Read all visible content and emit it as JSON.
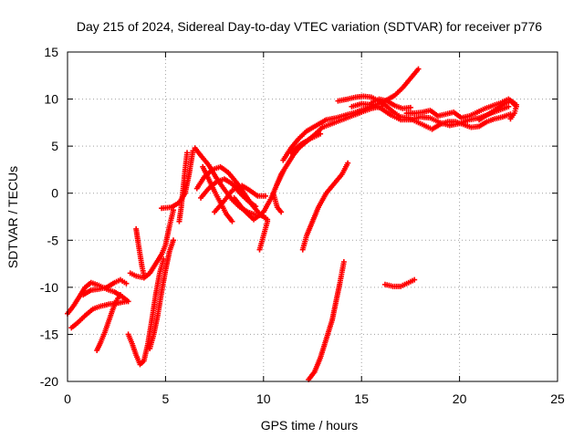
{
  "chart_data": {
    "type": "scatter",
    "title": "Day 215 of 2024, Sidereal Day-to-day VTEC variation (SDTVAR) for receiver p776",
    "xlabel": "GPS time / hours",
    "ylabel": "SDTVAR / TECUs",
    "xlim": [
      0,
      25
    ],
    "ylim": [
      -20,
      15
    ],
    "xticks": [
      0,
      5,
      10,
      15,
      20,
      25
    ],
    "yticks": [
      -20,
      -15,
      -10,
      -5,
      0,
      5,
      10,
      15
    ],
    "grid": true,
    "marker": "plus",
    "color": "#ff0000",
    "series": [
      {
        "points": [
          [
            0.0,
            -12.8
          ],
          [
            0.3,
            -12.0
          ],
          [
            0.6,
            -11.0
          ],
          [
            0.9,
            -10.0
          ],
          [
            1.2,
            -9.5
          ],
          [
            1.6,
            -9.8
          ],
          [
            2.0,
            -10.2
          ],
          [
            2.4,
            -10.5
          ],
          [
            2.8,
            -11.0
          ],
          [
            3.1,
            -11.5
          ]
        ]
      },
      {
        "points": [
          [
            0.2,
            -14.3
          ],
          [
            0.5,
            -13.8
          ],
          [
            0.9,
            -13.0
          ],
          [
            1.3,
            -12.3
          ],
          [
            1.7,
            -12.0
          ],
          [
            2.1,
            -11.8
          ],
          [
            2.5,
            -11.7
          ],
          [
            3.0,
            -11.5
          ]
        ]
      },
      {
        "points": [
          [
            0.8,
            -10.8
          ],
          [
            1.2,
            -10.3
          ],
          [
            1.6,
            -10.2
          ],
          [
            2.0,
            -10.0
          ],
          [
            2.4,
            -9.5
          ],
          [
            2.7,
            -9.2
          ],
          [
            3.0,
            -9.6
          ]
        ]
      },
      {
        "points": [
          [
            1.5,
            -16.7
          ],
          [
            1.7,
            -15.8
          ],
          [
            1.9,
            -14.8
          ],
          [
            2.1,
            -13.6
          ],
          [
            2.3,
            -12.4
          ],
          [
            2.5,
            -11.4
          ],
          [
            2.7,
            -10.8
          ]
        ]
      },
      {
        "points": [
          [
            3.5,
            -3.8
          ],
          [
            3.6,
            -5.2
          ],
          [
            3.7,
            -6.5
          ],
          [
            3.8,
            -7.8
          ],
          [
            3.9,
            -8.7
          ]
        ]
      },
      {
        "points": [
          [
            3.2,
            -8.5
          ],
          [
            3.5,
            -8.8
          ],
          [
            3.9,
            -9.0
          ],
          [
            4.2,
            -8.5
          ],
          [
            4.5,
            -7.5
          ],
          [
            4.8,
            -6.5
          ],
          [
            5.0,
            -5.5
          ],
          [
            5.2,
            -3.5
          ],
          [
            5.4,
            -1.8
          ]
        ]
      },
      {
        "points": [
          [
            3.1,
            -15.0
          ],
          [
            3.3,
            -16.0
          ],
          [
            3.5,
            -17.2
          ],
          [
            3.7,
            -18.2
          ],
          [
            3.9,
            -17.8
          ],
          [
            4.1,
            -16.0
          ],
          [
            4.3,
            -13.5
          ],
          [
            4.5,
            -10.8
          ],
          [
            4.7,
            -8.5
          ],
          [
            4.9,
            -7.0
          ]
        ]
      },
      {
        "points": [
          [
            4.2,
            -16.5
          ],
          [
            4.4,
            -15.0
          ],
          [
            4.6,
            -13.0
          ],
          [
            4.8,
            -10.5
          ],
          [
            5.0,
            -8.2
          ],
          [
            5.2,
            -6.2
          ],
          [
            5.4,
            -5.0
          ]
        ]
      },
      {
        "points": [
          [
            4.8,
            -1.6
          ],
          [
            5.3,
            -1.5
          ],
          [
            5.7,
            -1.0
          ],
          [
            6.0,
            0.0
          ],
          [
            6.2,
            2.0
          ],
          [
            6.4,
            4.5
          ]
        ]
      },
      {
        "points": [
          [
            5.7,
            -3.0
          ],
          [
            5.8,
            -1.5
          ],
          [
            5.9,
            0.5
          ],
          [
            6.0,
            2.5
          ],
          [
            6.1,
            4.3
          ]
        ]
      },
      {
        "points": [
          [
            6.5,
            4.8
          ],
          [
            6.8,
            4.0
          ],
          [
            7.2,
            3.0
          ],
          [
            7.6,
            1.6
          ],
          [
            8.0,
            0.4
          ],
          [
            8.4,
            -0.7
          ],
          [
            8.8,
            -1.5
          ],
          [
            9.2,
            -2.0
          ],
          [
            9.6,
            -2.3
          ],
          [
            10.0,
            -2.4
          ]
        ]
      },
      {
        "points": [
          [
            6.9,
            2.8
          ],
          [
            7.2,
            1.5
          ],
          [
            7.5,
            0.2
          ],
          [
            7.8,
            -1.0
          ],
          [
            8.1,
            -2.2
          ],
          [
            8.4,
            -3.0
          ]
        ]
      },
      {
        "points": [
          [
            6.6,
            0.5
          ],
          [
            7.0,
            1.8
          ],
          [
            7.4,
            2.5
          ],
          [
            7.8,
            2.8
          ],
          [
            8.2,
            2.2
          ],
          [
            8.6,
            1.2
          ],
          [
            9.0,
            0.0
          ],
          [
            9.4,
            -1.2
          ],
          [
            9.8,
            -2.2
          ],
          [
            10.2,
            -2.8
          ]
        ]
      },
      {
        "points": [
          [
            6.8,
            -0.5
          ],
          [
            7.2,
            0.5
          ],
          [
            7.6,
            1.2
          ],
          [
            8.0,
            1.5
          ],
          [
            8.4,
            1.0
          ],
          [
            8.8,
            0.0
          ],
          [
            9.2,
            -0.8
          ],
          [
            9.6,
            -1.4
          ]
        ]
      },
      {
        "points": [
          [
            7.5,
            -2.0
          ],
          [
            8.0,
            -0.8
          ],
          [
            8.4,
            0.3
          ],
          [
            8.9,
            0.8
          ],
          [
            9.3,
            0.3
          ],
          [
            9.7,
            -0.3
          ],
          [
            10.1,
            -0.3
          ]
        ]
      },
      {
        "points": [
          [
            8.5,
            -0.5
          ],
          [
            9.0,
            -1.8
          ],
          [
            9.5,
            -2.8
          ],
          [
            10.0,
            -2.0
          ],
          [
            10.4,
            -0.5
          ],
          [
            10.7,
            1.0
          ],
          [
            11.0,
            2.3
          ]
        ]
      },
      {
        "points": [
          [
            10.5,
            0.0
          ],
          [
            10.7,
            -1.5
          ],
          [
            10.9,
            -2.0
          ]
        ]
      },
      {
        "points": [
          [
            9.8,
            -6.0
          ],
          [
            10.0,
            -4.5
          ],
          [
            10.2,
            -3.0
          ]
        ]
      },
      {
        "points": [
          [
            10.7,
            1.0
          ],
          [
            10.9,
            2.0
          ],
          [
            11.2,
            3.0
          ],
          [
            11.5,
            4.0
          ],
          [
            11.8,
            4.8
          ],
          [
            12.2,
            5.5
          ],
          [
            12.6,
            6.2
          ],
          [
            13.0,
            7.0
          ],
          [
            13.5,
            7.4
          ],
          [
            14.0,
            7.8
          ],
          [
            14.5,
            8.2
          ],
          [
            15.0,
            8.6
          ],
          [
            15.5,
            9.0
          ],
          [
            16.0,
            9.2
          ]
        ]
      },
      {
        "points": [
          [
            11.0,
            3.5
          ],
          [
            11.4,
            4.8
          ],
          [
            11.8,
            5.8
          ],
          [
            12.2,
            6.6
          ],
          [
            12.7,
            7.2
          ],
          [
            13.2,
            7.8
          ],
          [
            13.7,
            8.0
          ],
          [
            14.2,
            8.3
          ],
          [
            14.7,
            8.6
          ],
          [
            15.2,
            9.0
          ],
          [
            15.7,
            9.4
          ],
          [
            16.2,
            9.8
          ],
          [
            16.7,
            10.4
          ],
          [
            17.1,
            11.2
          ],
          [
            17.5,
            12.2
          ],
          [
            17.9,
            13.2
          ]
        ]
      },
      {
        "points": [
          [
            11.4,
            4.3
          ],
          [
            11.9,
            5.2
          ],
          [
            12.4,
            5.8
          ],
          [
            12.9,
            6.3
          ]
        ]
      },
      {
        "points": [
          [
            12.0,
            -6.0
          ],
          [
            12.2,
            -4.5
          ],
          [
            12.5,
            -3.0
          ],
          [
            12.8,
            -1.5
          ],
          [
            13.2,
            0.0
          ],
          [
            13.6,
            1.0
          ],
          [
            14.0,
            2.0
          ],
          [
            14.3,
            3.2
          ]
        ]
      },
      {
        "points": [
          [
            12.3,
            -19.8
          ],
          [
            12.6,
            -19.0
          ],
          [
            12.9,
            -17.5
          ],
          [
            13.2,
            -15.5
          ],
          [
            13.5,
            -13.5
          ],
          [
            13.7,
            -11.5
          ],
          [
            13.9,
            -9.5
          ],
          [
            14.1,
            -7.3
          ]
        ]
      },
      {
        "points": [
          [
            13.8,
            9.8
          ],
          [
            14.3,
            10.0
          ],
          [
            14.7,
            10.2
          ],
          [
            15.1,
            10.3
          ],
          [
            15.5,
            10.2
          ],
          [
            15.9,
            9.8
          ],
          [
            16.3,
            9.2
          ],
          [
            16.7,
            8.5
          ],
          [
            17.0,
            8.1
          ],
          [
            17.4,
            8.0
          ],
          [
            17.8,
            7.6
          ],
          [
            18.2,
            7.2
          ],
          [
            18.6,
            6.8
          ],
          [
            19.0,
            7.3
          ],
          [
            19.4,
            7.6
          ],
          [
            19.8,
            7.6
          ],
          [
            20.2,
            7.3
          ],
          [
            20.6,
            7.0
          ],
          [
            21.0,
            7.1
          ],
          [
            21.4,
            7.6
          ],
          [
            21.8,
            7.9
          ],
          [
            22.2,
            8.1
          ],
          [
            22.6,
            8.4
          ]
        ]
      },
      {
        "points": [
          [
            14.5,
            9.2
          ],
          [
            15.0,
            9.5
          ],
          [
            15.5,
            9.4
          ],
          [
            16.0,
            9.0
          ],
          [
            16.5,
            8.3
          ],
          [
            17.0,
            7.8
          ],
          [
            17.5,
            7.8
          ],
          [
            18.0,
            8.1
          ],
          [
            18.5,
            8.0
          ],
          [
            19.0,
            7.5
          ],
          [
            19.5,
            7.2
          ],
          [
            20.0,
            7.4
          ],
          [
            20.5,
            7.8
          ],
          [
            21.0,
            8.0
          ],
          [
            21.5,
            8.4
          ],
          [
            22.0,
            8.8
          ],
          [
            22.5,
            9.2
          ]
        ]
      },
      {
        "points": [
          [
            17.3,
            8.5
          ],
          [
            17.7,
            8.5
          ],
          [
            18.1,
            8.6
          ],
          [
            18.5,
            8.8
          ],
          [
            18.9,
            8.2
          ],
          [
            19.3,
            8.4
          ],
          [
            19.7,
            8.6
          ],
          [
            20.1,
            8.0
          ],
          [
            20.5,
            8.2
          ],
          [
            20.9,
            8.6
          ],
          [
            21.3,
            9.0
          ],
          [
            21.7,
            9.3
          ],
          [
            22.1,
            9.6
          ],
          [
            22.5,
            10.0
          ],
          [
            22.9,
            9.4
          ]
        ]
      },
      {
        "points": [
          [
            21.0,
            7.8
          ],
          [
            21.4,
            8.3
          ],
          [
            21.8,
            8.8
          ],
          [
            22.2,
            9.4
          ],
          [
            22.6,
            9.8
          ],
          [
            22.9,
            9.2
          ],
          [
            22.8,
            8.5
          ],
          [
            22.6,
            7.9
          ]
        ]
      },
      {
        "points": [
          [
            15.5,
            9.6
          ],
          [
            15.9,
            10.0
          ],
          [
            16.3,
            9.8
          ],
          [
            16.7,
            9.3
          ],
          [
            17.1,
            9.0
          ],
          [
            17.5,
            9.1
          ]
        ]
      },
      {
        "points": [
          [
            16.2,
            -9.7
          ],
          [
            16.6,
            -9.9
          ],
          [
            17.0,
            -9.9
          ],
          [
            17.4,
            -9.5
          ],
          [
            17.7,
            -9.2
          ]
        ]
      }
    ]
  }
}
